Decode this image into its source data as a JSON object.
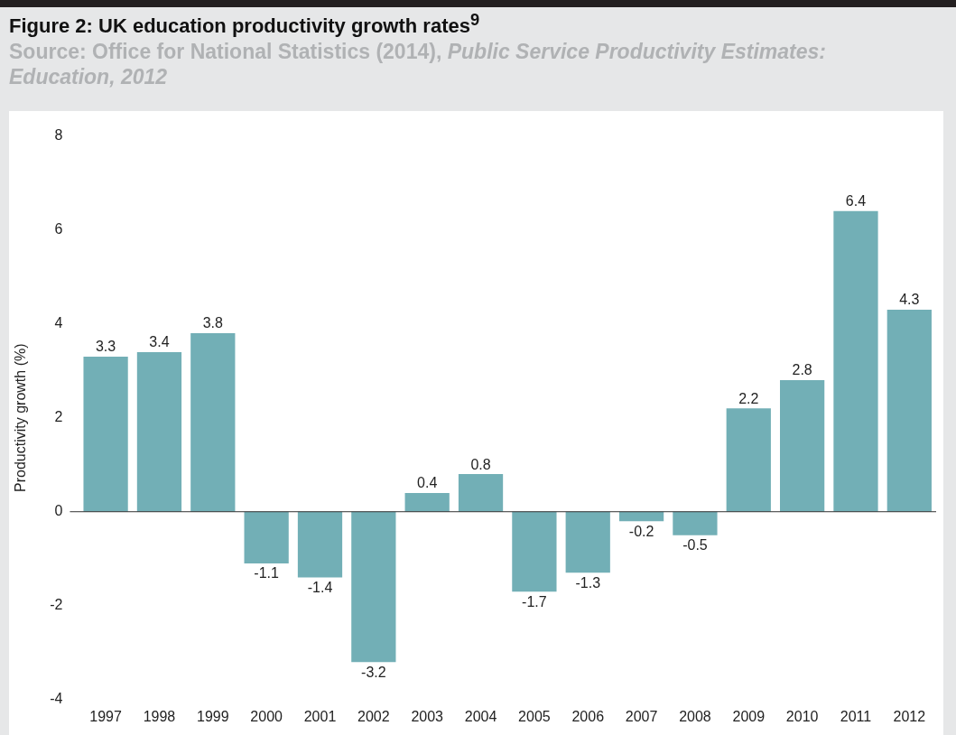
{
  "chart_data": {
    "type": "bar",
    "title": "Figure 2: UK education productivity growth rates$^{9}$",
    "subtitle": "Source: Office for National Statistics (2014),",
    "annotations": [
      "Public Service Productivity Estimates: Education, 2012"
    ],
    "ylabel": "Productivity growth (%)",
    "categories": [
      "1997",
      "1998",
      "1999",
      "2000",
      "2001",
      "2002",
      "2003",
      "2004",
      "2005",
      "2006",
      "2007",
      "2008",
      "2009",
      "2010",
      "2011",
      "2012"
    ],
    "values": [
      3.3,
      3.4,
      3.8,
      -1.1,
      -1.4,
      -3.2,
      0.4,
      0.8,
      -1.7,
      -1.3,
      -0.2,
      -0.5,
      2.2,
      2.8,
      6.4,
      4.3
    ],
    "color": "#72afb6",
    "ylim": [
      -4,
      8
    ],
    "yticks": [
      -4,
      -2,
      0,
      2,
      4,
      6,
      8
    ],
    "ref_lines": [
      {
        "axis": "y",
        "value": 0,
        "color": "#333333"
      }
    ],
    "grid": false,
    "legend": false,
    "data_labels": true
  }
}
